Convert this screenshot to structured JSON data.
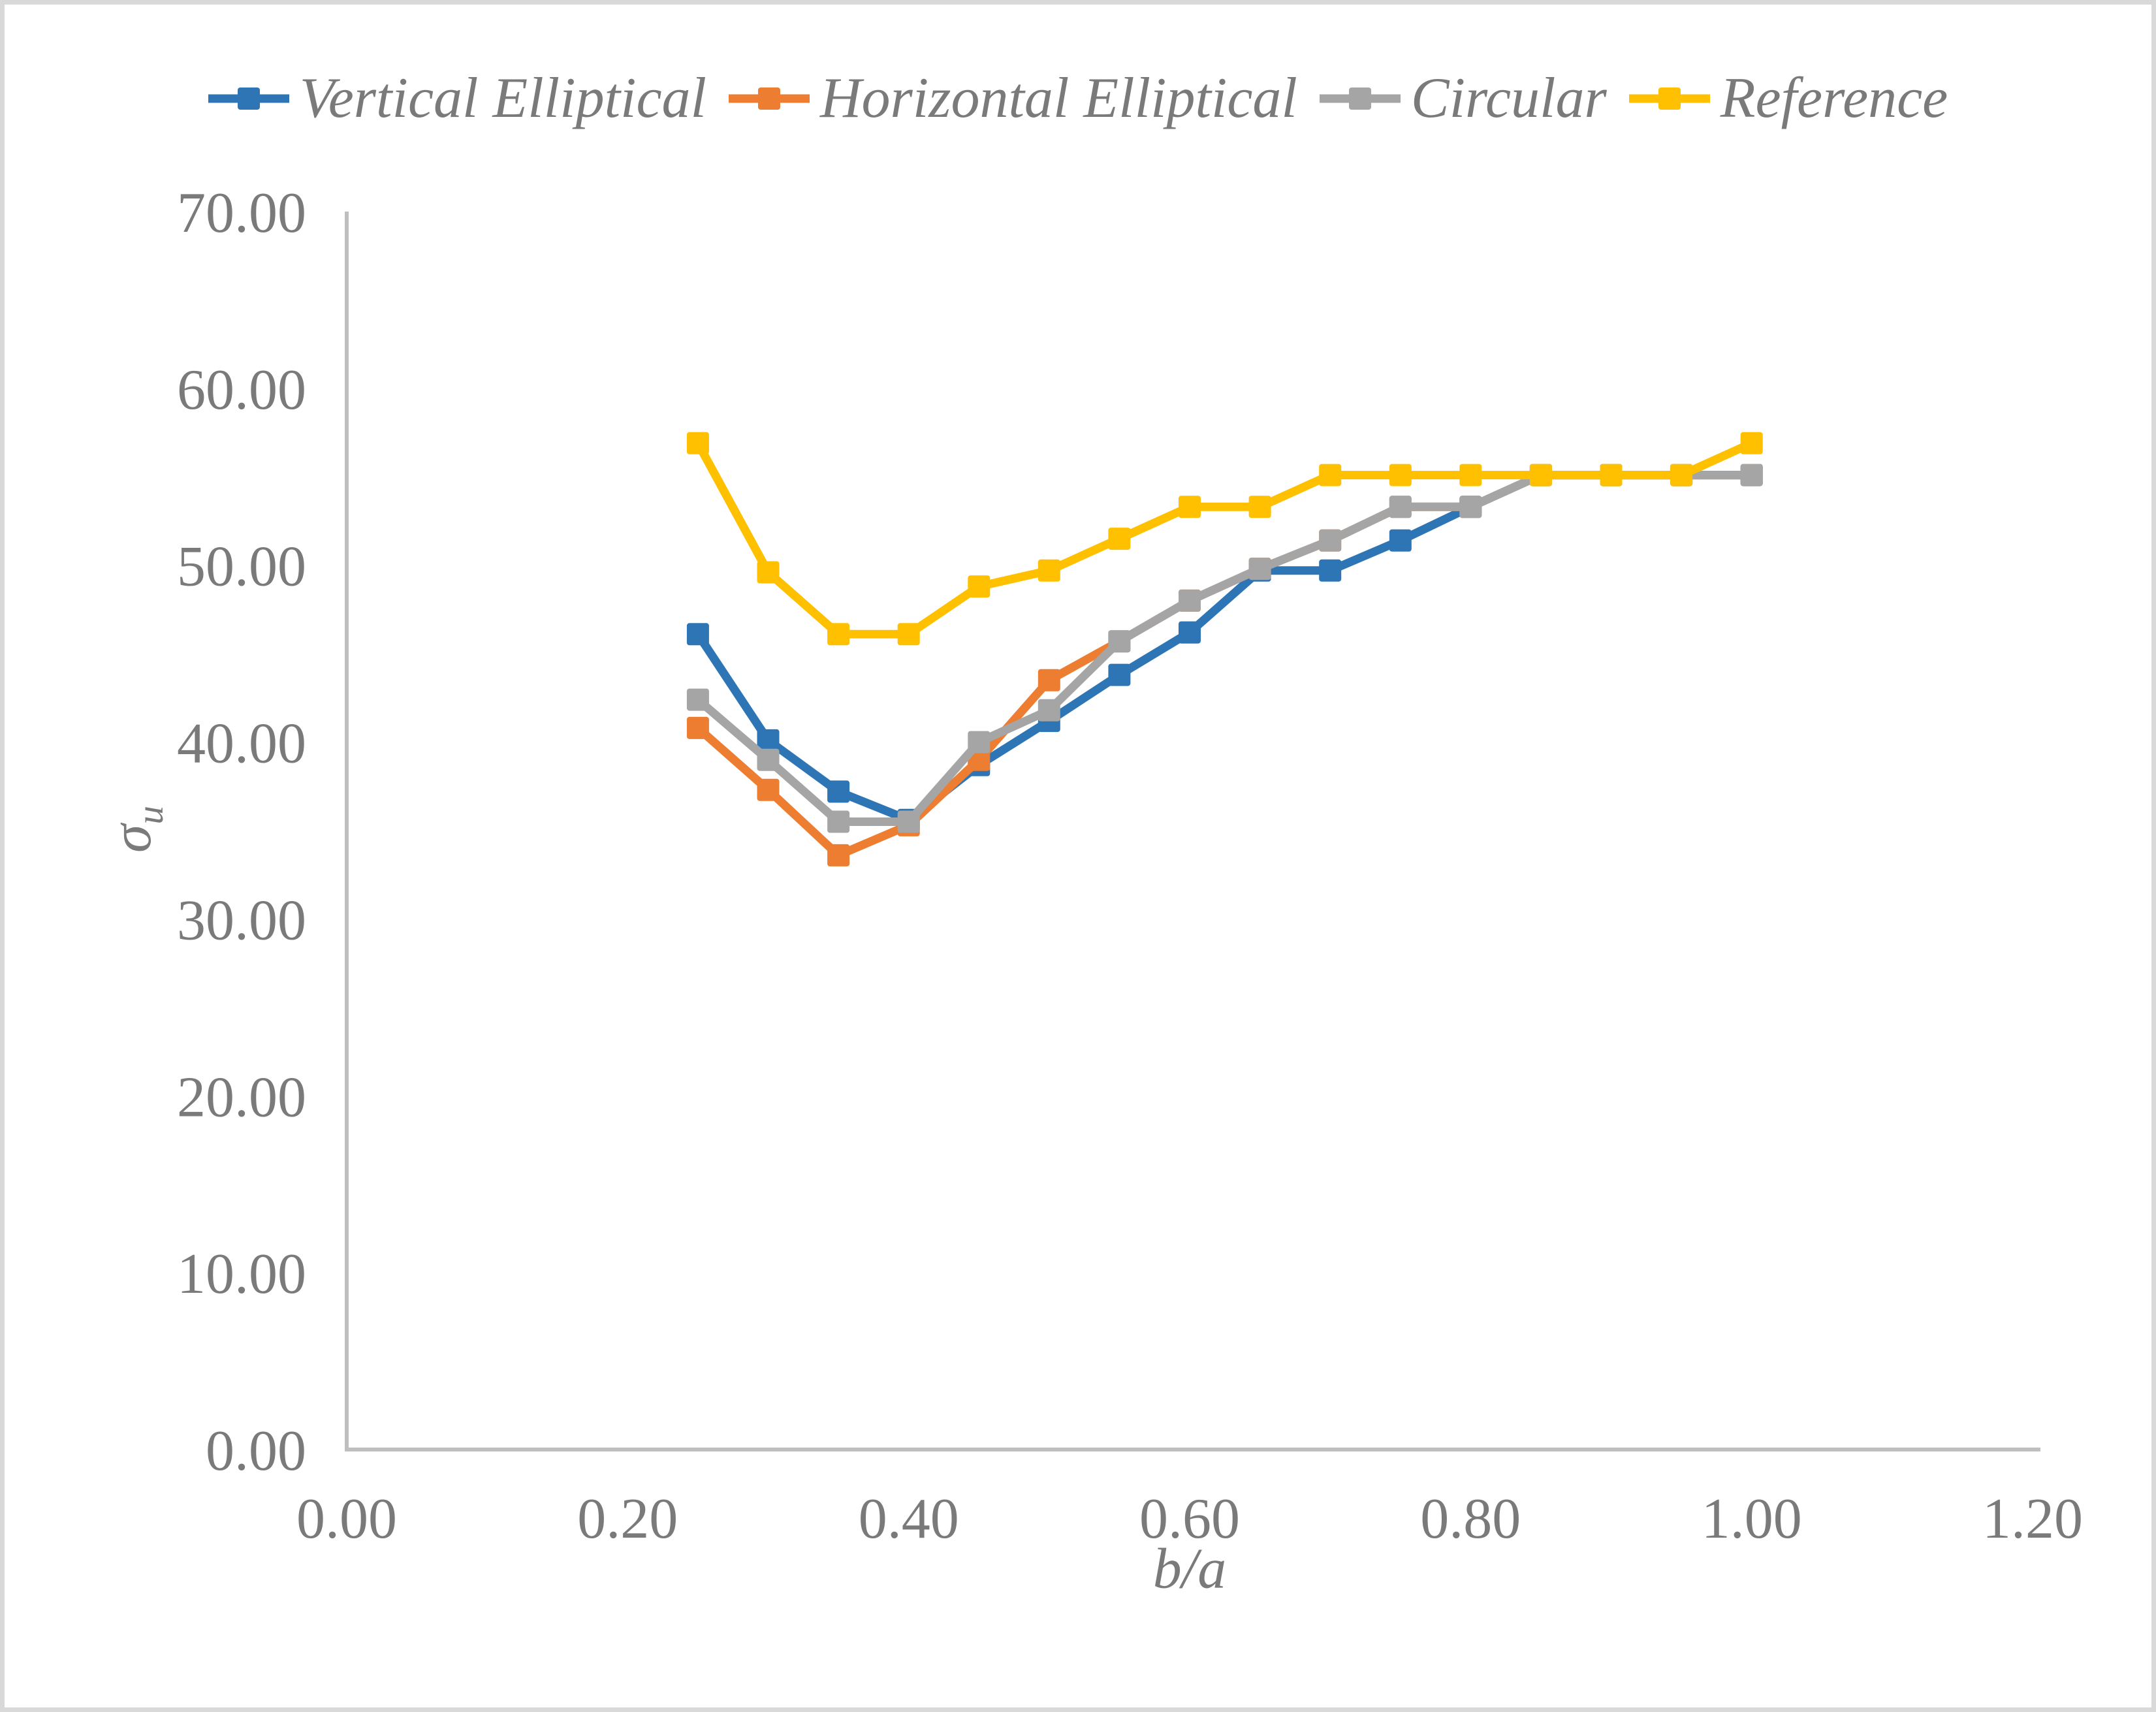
{
  "chart_data": {
    "type": "line",
    "title": "",
    "xlabel": "b/a",
    "ylabel": "σ_u",
    "ylabel_base": "σ",
    "ylabel_sub": "u",
    "xlim": [
      0,
      1.2
    ],
    "ylim": [
      0,
      70
    ],
    "grid": false,
    "legend_position": "top",
    "axis_color": "#bfbfbf",
    "text_color": "#7a7a7a",
    "x_ticks": [
      "0.00",
      "0.20",
      "0.40",
      "0.60",
      "0.80",
      "1.00",
      "1.20"
    ],
    "y_ticks": [
      "0.00",
      "10.00",
      "20.00",
      "30.00",
      "40.00",
      "50.00",
      "60.00",
      "70.00"
    ],
    "x": [
      0.25,
      0.3,
      0.35,
      0.4,
      0.45,
      0.5,
      0.55,
      0.6,
      0.65,
      0.7,
      0.75,
      0.8,
      0.85,
      0.9,
      0.95,
      1.0
    ],
    "series": [
      {
        "name": "Vertical Elliptical",
        "color": "#2e75b6",
        "marker": "square",
        "values": [
          46.1,
          40.1,
          37.2,
          35.6,
          38.7,
          41.2,
          43.8,
          46.2,
          49.7,
          49.7,
          51.4,
          53.3,
          55.1,
          55.1,
          55.1,
          55.1
        ]
      },
      {
        "name": "Horizontal Elliptical",
        "color": "#ed7d31",
        "marker": "square",
        "values": [
          40.8,
          37.3,
          33.6,
          35.3,
          39.0,
          43.5,
          45.7,
          48.0,
          49.8,
          51.4,
          53.3,
          53.3,
          55.1,
          55.1,
          55.1,
          55.1
        ]
      },
      {
        "name": "Circular",
        "color": "#a5a5a5",
        "marker": "square",
        "values": [
          42.4,
          39.0,
          35.5,
          35.5,
          40.0,
          41.8,
          45.7,
          48.0,
          49.8,
          51.4,
          53.3,
          53.3,
          55.1,
          55.1,
          55.1,
          55.1
        ]
      },
      {
        "name": "Reference",
        "color": "#ffc000",
        "marker": "square",
        "values": [
          56.9,
          49.6,
          46.1,
          46.1,
          48.8,
          49.7,
          51.5,
          53.3,
          53.3,
          55.1,
          55.1,
          55.1,
          55.1,
          55.1,
          55.1,
          56.9
        ]
      }
    ]
  }
}
